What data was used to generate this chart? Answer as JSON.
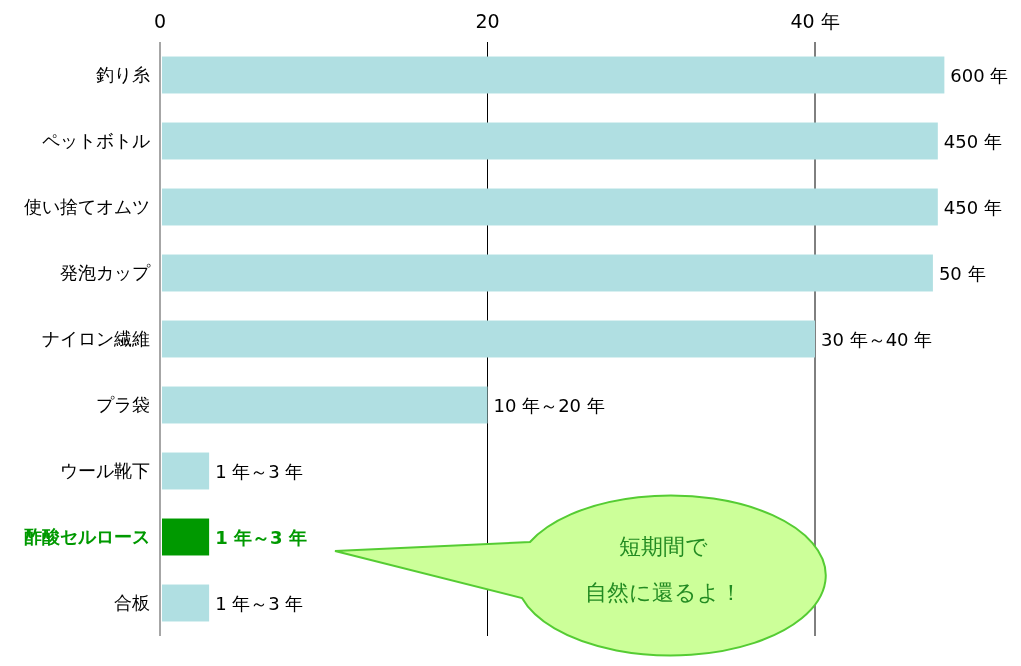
{
  "chart_data": {
    "type": "bar",
    "orientation": "horizontal",
    "categories": [
      "釣り糸",
      "ペットボトル",
      "使い捨てオムツ",
      "発泡カップ",
      "ナイロン繊維",
      "プラ袋",
      "ウール靴下",
      "酢酸セルロース",
      "合板"
    ],
    "values": [
      47.9,
      47.5,
      47.5,
      47.2,
      40,
      20,
      3,
      3,
      3
    ],
    "color": "#b0dfe2",
    "colors": [
      "#b0dfe2",
      "#b0dfe2",
      "#b0dfe2",
      "#b0dfe2",
      "#b0dfe2",
      "#b0dfe2",
      "#b0dfe2",
      "#009900",
      "#b0dfe2"
    ],
    "value_labels": [
      null,
      null,
      null,
      null,
      "30 年～40 年",
      "10 年～20 年",
      "1 年～3 年",
      "1 年～3 年",
      "1 年～3 年"
    ],
    "xlim": [
      0,
      48
    ],
    "xticks": [
      0,
      20,
      {
        "value": 40,
        "label": "40 年"
      }
    ],
    "grid": "x",
    "annotations": [
      {
        "text": "600 年",
        "x": 47.9,
        "y": "釣り糸"
      },
      {
        "text": "450 年",
        "x": 47.5,
        "y": "ペットボトル"
      },
      {
        "text": "450 年",
        "x": 47.5,
        "y": "使い捨てオムツ"
      },
      {
        "text": "50 年",
        "x": 47.2,
        "y": "発泡カップ"
      },
      "短期間で",
      "自然に還るよ！"
    ]
  }
}
